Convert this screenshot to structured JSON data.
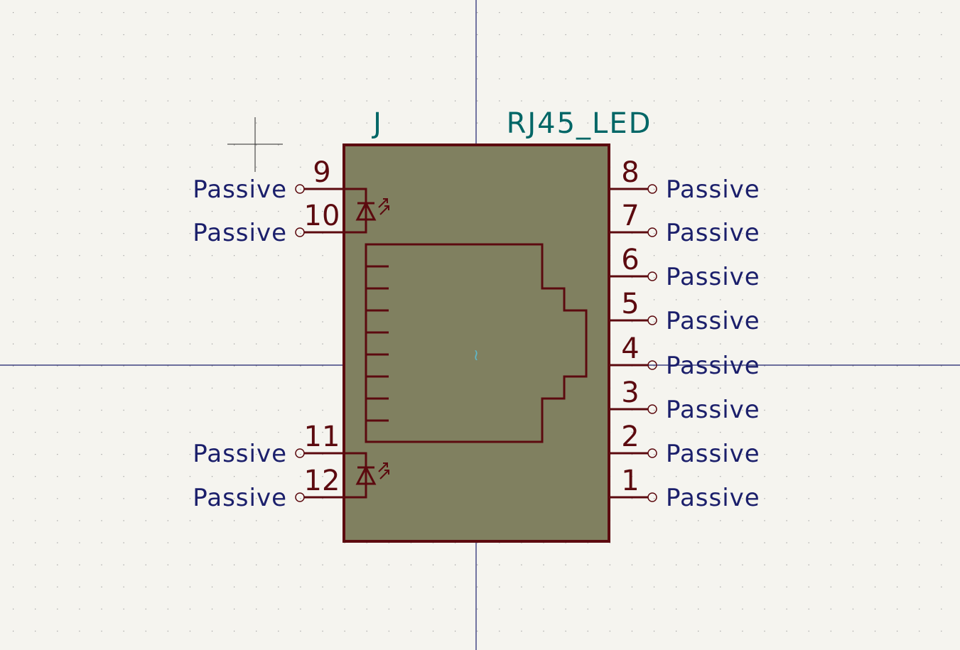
{
  "symbol": {
    "reference": "J",
    "value": "RJ45_LED",
    "anchor_glyph": "≀"
  },
  "pins_left": [
    {
      "number": "9",
      "type": "Passive"
    },
    {
      "number": "10",
      "type": "Passive"
    },
    {
      "number": "11",
      "type": "Passive"
    },
    {
      "number": "12",
      "type": "Passive"
    }
  ],
  "pins_right": [
    {
      "number": "8",
      "type": "Passive"
    },
    {
      "number": "7",
      "type": "Passive"
    },
    {
      "number": "6",
      "type": "Passive"
    },
    {
      "number": "5",
      "type": "Passive"
    },
    {
      "number": "4",
      "type": "Passive"
    },
    {
      "number": "3",
      "type": "Passive"
    },
    {
      "number": "2",
      "type": "Passive"
    },
    {
      "number": "1",
      "type": "Passive"
    }
  ],
  "colors": {
    "background": "#f5f4ef",
    "body_fill": "#808060",
    "body_outline": "#5c0a0f",
    "pin_text": "#1b1f6b",
    "field_text": "#006666",
    "axis": "#1b1f6b",
    "grid_dot": "#9a9a9a"
  }
}
